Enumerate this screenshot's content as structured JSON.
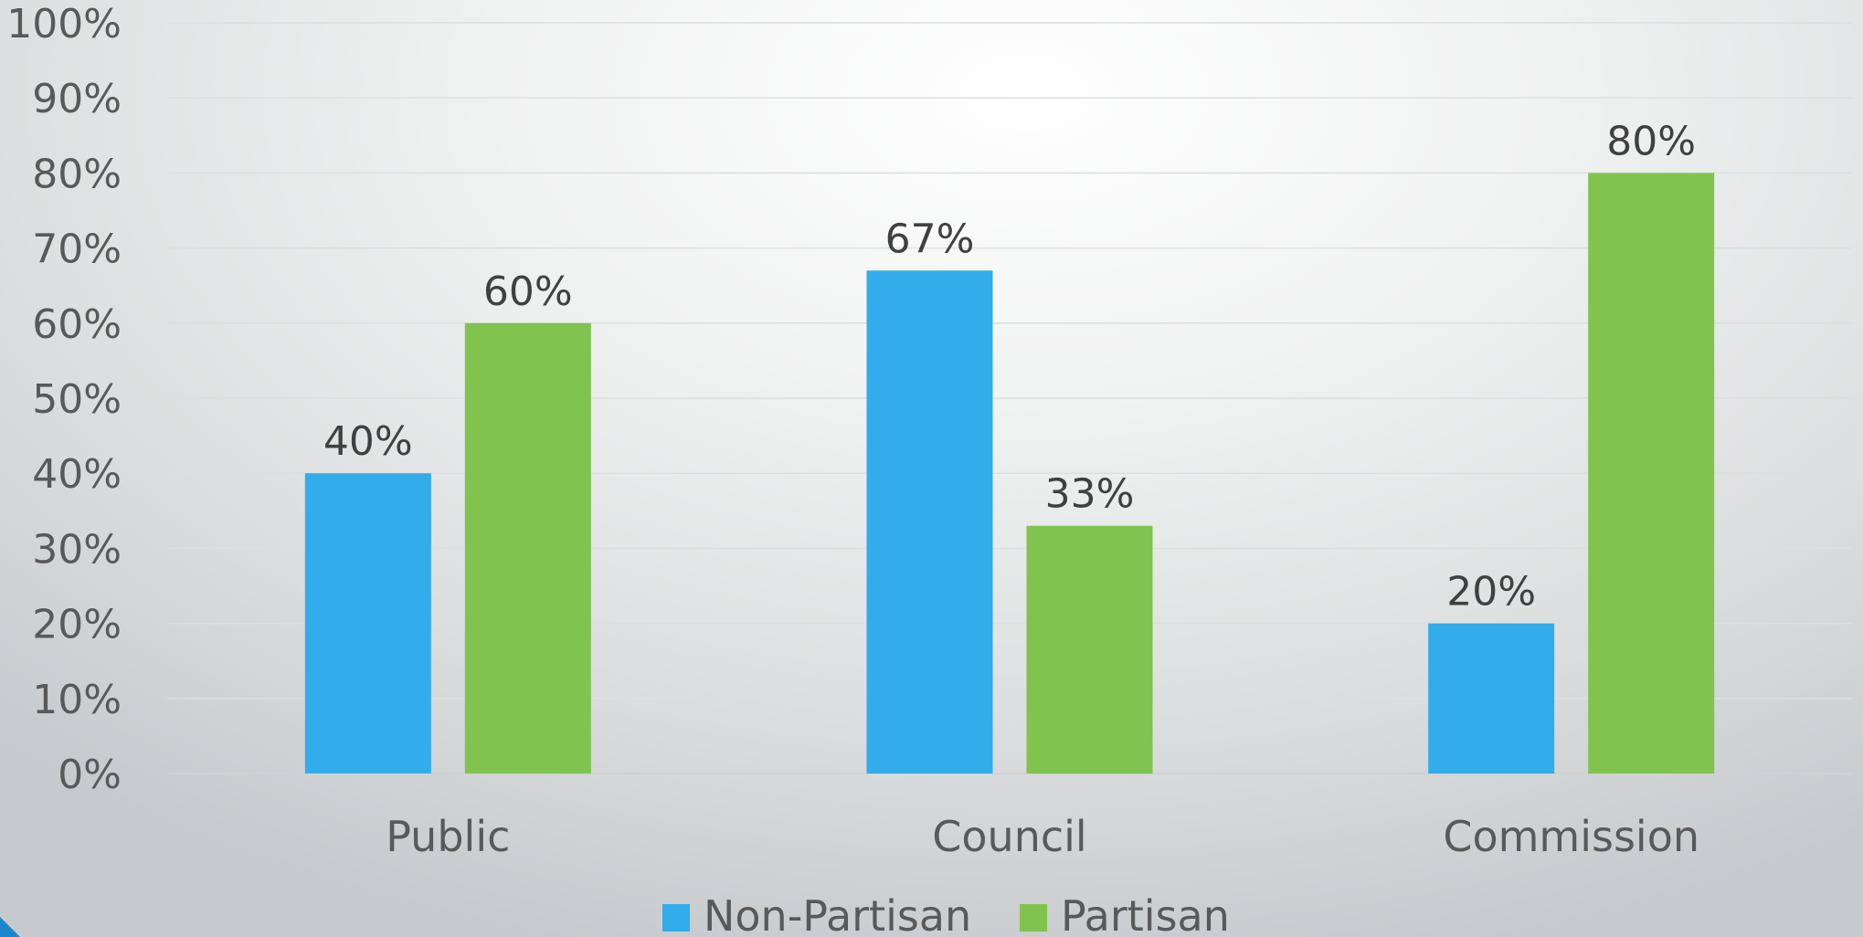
{
  "chart_data": {
    "type": "bar",
    "categories": [
      "Public",
      "Council",
      "Commission"
    ],
    "series": [
      {
        "name": "Non-Partisan",
        "color": "#32acea",
        "values": [
          40,
          67,
          20
        ],
        "labels": [
          "40%",
          "67%",
          "20%"
        ]
      },
      {
        "name": "Partisan",
        "color": "#80c34f",
        "values": [
          60,
          33,
          80
        ],
        "labels": [
          "60%",
          "33%",
          "80%"
        ]
      }
    ],
    "ylim": [
      0,
      100
    ],
    "yticks": [
      "0%",
      "10%",
      "20%",
      "30%",
      "40%",
      "50%",
      "60%",
      "70%",
      "80%",
      "90%",
      "100%"
    ],
    "grid": true,
    "legend_position": "bottom"
  }
}
